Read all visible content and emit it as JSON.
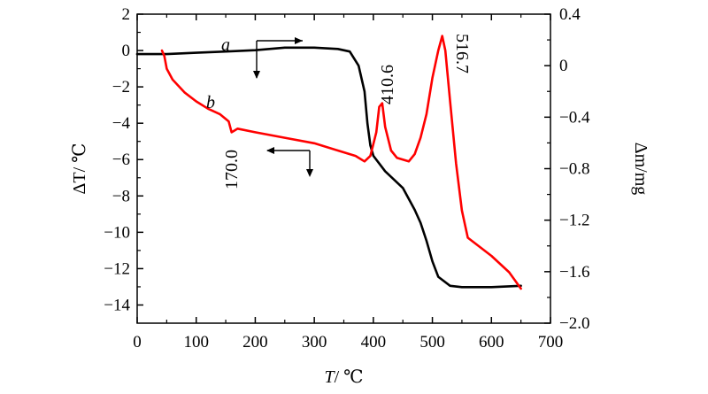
{
  "chart_data": {
    "type": "line",
    "title": "",
    "xlabel": {
      "var": "T",
      "unit": "/ ℃"
    },
    "ylabel_left": {
      "var": "ΔT",
      "unit": "/ ℃"
    },
    "ylabel_right": {
      "var": "Δm",
      "unit": "/mg"
    },
    "xlim": [
      0,
      700
    ],
    "ylim_left": [
      -15,
      2
    ],
    "ylim_right": [
      -2.0,
      0.4
    ],
    "x_ticks": [
      0,
      100,
      200,
      300,
      400,
      500,
      600,
      700
    ],
    "y_left_ticks": [
      2,
      0,
      -2,
      -4,
      -6,
      -8,
      -10,
      -12,
      -14
    ],
    "y_right_ticks": [
      0.4,
      0,
      -0.4,
      -0.8,
      -1.2,
      -1.6,
      -2.0
    ],
    "x_tick_labels": [
      "0",
      "100",
      "200",
      "300",
      "400",
      "500",
      "600",
      "700"
    ],
    "y_left_tick_labels": [
      "2",
      "0",
      "−2",
      "−4",
      "−6",
      "−8",
      "−10",
      "−12",
      "−14"
    ],
    "y_right_tick_labels": [
      "0.4",
      "0",
      "−0.4",
      "−0.8",
      "−1.2",
      "−1.6",
      "−2.0"
    ],
    "series": [
      {
        "name": "a",
        "label": "a",
        "axis": "right",
        "color": "#000000",
        "x": [
          0,
          50,
          100,
          150,
          200,
          250,
          300,
          340,
          360,
          375,
          385,
          390,
          395,
          400,
          420,
          450,
          470,
          480,
          490,
          500,
          510,
          530,
          550,
          600,
          650
        ],
        "y": [
          0.09,
          0.09,
          0.1,
          0.11,
          0.12,
          0.14,
          0.14,
          0.13,
          0.11,
          0.0,
          -0.2,
          -0.45,
          -0.62,
          -0.7,
          -0.82,
          -0.95,
          -1.12,
          -1.22,
          -1.36,
          -1.52,
          -1.64,
          -1.71,
          -1.72,
          -1.72,
          -1.71
        ]
      },
      {
        "name": "b",
        "label": "b",
        "axis": "left",
        "color": "#ff0000",
        "x": [
          42,
          46,
          50,
          60,
          80,
          100,
          120,
          140,
          155,
          160,
          165,
          170,
          200,
          250,
          300,
          340,
          370,
          385,
          395,
          405,
          410,
          415,
          420,
          430,
          440,
          460,
          470,
          480,
          490,
          500,
          510,
          516.7,
          522,
          530,
          540,
          550,
          560,
          600,
          630,
          650
        ],
        "y": [
          0,
          -0.3,
          -1.0,
          -1.6,
          -2.3,
          -2.8,
          -3.2,
          -3.5,
          -3.9,
          -4.5,
          -4.4,
          -4.3,
          -4.5,
          -4.8,
          -5.1,
          -5.5,
          -5.8,
          -6.1,
          -5.8,
          -4.5,
          -3.1,
          -2.9,
          -4.2,
          -5.5,
          -5.9,
          -6.1,
          -5.7,
          -4.8,
          -3.5,
          -1.5,
          0.0,
          0.8,
          0.0,
          -2.8,
          -6.2,
          -8.8,
          -10.3,
          -11.3,
          -12.2,
          -13.1
        ]
      }
    ],
    "annotations": {
      "peak_170": "170.0",
      "peak_410": "410.6",
      "peak_516": "516.7",
      "label_a": "a",
      "label_b": "b"
    }
  }
}
